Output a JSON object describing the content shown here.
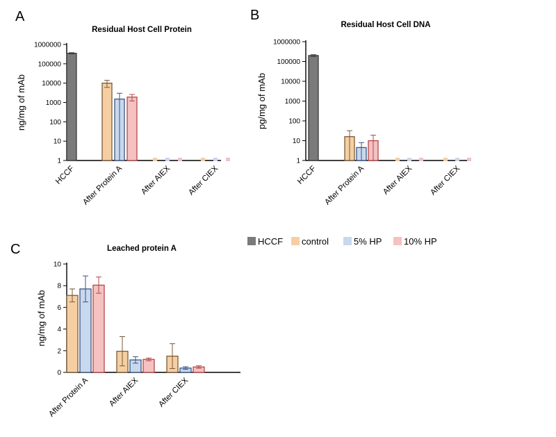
{
  "legend": [
    {
      "name": "HCCF",
      "fill": "#7a7a7a",
      "stroke": "#3a3a3a"
    },
    {
      "name": "control",
      "fill": "#f5cfa3",
      "stroke": "#7a5a38"
    },
    {
      "name": "5% HP",
      "fill": "#c8d8ee",
      "stroke": "#3a5680"
    },
    {
      "name": "10% HP",
      "fill": "#f5c1c1",
      "stroke": "#b24848"
    }
  ],
  "chart_data": [
    {
      "id": "A",
      "panel_letter": "A",
      "type": "bar",
      "scale": "log",
      "title": "Residual Host Cell Protein",
      "ylabel": "ng/mg of mAb",
      "ylim": [
        1,
        1000000
      ],
      "yticks": [
        "1",
        "10",
        "100",
        "1000",
        "10000",
        "100000",
        "1000000"
      ],
      "categories": [
        "HCCF",
        "After Protein A",
        "After AIEX",
        "After CIEX"
      ],
      "series": [
        {
          "name": "HCCF",
          "values": [
            350000,
            null,
            null,
            null
          ],
          "err": [
            25000,
            null,
            null,
            null
          ]
        },
        {
          "name": "control",
          "values": [
            null,
            10000,
            1,
            1
          ],
          "err": [
            null,
            4000,
            0,
            0
          ]
        },
        {
          "name": "5% HP",
          "values": [
            null,
            1500,
            1,
            1
          ],
          "err": [
            null,
            1500,
            0,
            0
          ]
        },
        {
          "name": "10% HP",
          "values": [
            null,
            1900,
            1,
            1
          ],
          "err": [
            null,
            700,
            0,
            0
          ]
        }
      ]
    },
    {
      "id": "B",
      "panel_letter": "B",
      "type": "bar",
      "scale": "log",
      "title": "Residual Host Cell DNA",
      "ylabel": "pg/mg of mAb",
      "ylim": [
        1,
        1000000
      ],
      "yticks": [
        "1",
        "10",
        "100",
        "1000",
        "10000",
        "100000",
        "1000000"
      ],
      "categories": [
        "HCCF",
        "After Protein A",
        "After AIEX",
        "After CIEX"
      ],
      "series": [
        {
          "name": "HCCF",
          "values": [
            200000,
            null,
            null,
            null
          ],
          "err": [
            20000,
            null,
            null,
            null
          ]
        },
        {
          "name": "control",
          "values": [
            null,
            16,
            1,
            1
          ],
          "err": [
            null,
            16,
            0,
            0
          ]
        },
        {
          "name": "5% HP",
          "values": [
            null,
            4.5,
            1,
            1
          ],
          "err": [
            null,
            3.5,
            0,
            0
          ]
        },
        {
          "name": "10% HP",
          "values": [
            null,
            10,
            1,
            1
          ],
          "err": [
            null,
            9,
            0,
            0
          ]
        }
      ]
    },
    {
      "id": "C",
      "panel_letter": "C",
      "type": "bar",
      "scale": "linear",
      "title": "Leached protein A",
      "ylabel": "ng/mg of mAb",
      "ylim": [
        0,
        10
      ],
      "yticks": [
        "0",
        "2",
        "4",
        "6",
        "8",
        "10"
      ],
      "categories": [
        "After Protein A",
        "After AIEX",
        "After CIEX"
      ],
      "series": [
        {
          "name": "control",
          "values": [
            7.1,
            1.95,
            1.5
          ],
          "err": [
            0.6,
            1.35,
            1.15
          ]
        },
        {
          "name": "5% HP",
          "values": [
            7.7,
            1.15,
            0.4
          ],
          "err": [
            1.2,
            0.3,
            0.12
          ]
        },
        {
          "name": "10% HP",
          "values": [
            8.05,
            1.2,
            0.5
          ],
          "err": [
            0.75,
            0.12,
            0.12
          ]
        }
      ]
    }
  ]
}
